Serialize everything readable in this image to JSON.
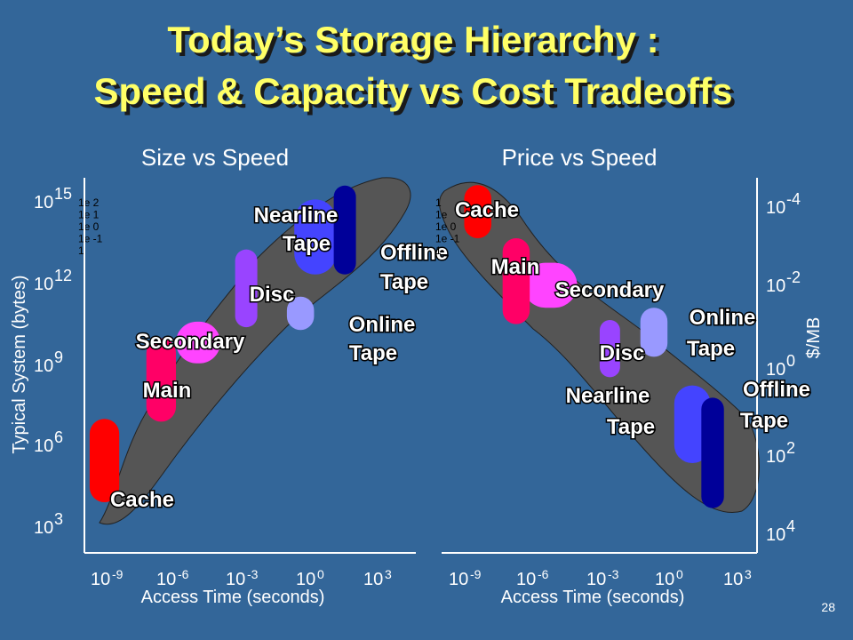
{
  "slide": {
    "title_line1": "Today’s Storage Hierarchy :",
    "title_line2": "Speed & Capacity  vs Cost Tradeoffs",
    "page_number": "28"
  },
  "colors": {
    "background": "#336699",
    "title": "#ffff66",
    "band": "#555555",
    "cache": "#ff0000",
    "main": "#ff0066",
    "secondary": "#ff44ff",
    "disc": "#9944ff",
    "online_tape": "#9999ff",
    "nearline_tape": "#4444ff",
    "offline_tape": "#000099"
  },
  "chart_data": [
    {
      "type": "scatter",
      "title": "Size vs Speed",
      "xlabel": "Access  Time (seconds)",
      "ylabel": "Typical System (bytes)",
      "x_scale": "log",
      "y_scale": "log",
      "x_ticks": [
        {
          "base": "10",
          "exp": "-9"
        },
        {
          "base": "10",
          "exp": "-6"
        },
        {
          "base": "10",
          "exp": "-3"
        },
        {
          "base": "10",
          "exp": " 0"
        },
        {
          "base": "10",
          "exp": " 3"
        }
      ],
      "y_ticks": [
        {
          "base": "10",
          "exp": "3"
        },
        {
          "base": "10",
          "exp": "6"
        },
        {
          "base": "10",
          "exp": "9"
        },
        {
          "base": "10",
          "exp": "12"
        },
        {
          "base": "10",
          "exp": "15"
        }
      ],
      "xlim_log10": [
        -9,
        3
      ],
      "ylim_log10": [
        3,
        15
      ],
      "overlay_tick_text": [
        "1e 2",
        "1e 1",
        "1e 0",
        "1e -1",
        "1"
      ],
      "categories": [
        {
          "key": "cache",
          "label": [
            "Cache"
          ],
          "x_log10": [
            -9.4,
            -8.2
          ],
          "y_log10": [
            3.8,
            6.8
          ]
        },
        {
          "key": "main",
          "label": [
            "Main"
          ],
          "x_log10": [
            -7.1,
            -5.9
          ],
          "y_log10": [
            6.7,
            9.7
          ]
        },
        {
          "key": "secondary",
          "label": [
            "Secondary"
          ],
          "x_log10": [
            -5.9,
            -4.1
          ],
          "y_log10": [
            8.8,
            10.3
          ]
        },
        {
          "key": "disc",
          "label": [
            "Disc"
          ],
          "x_log10": [
            -3.5,
            -2.6
          ],
          "y_log10": [
            10.1,
            12.9
          ]
        },
        {
          "key": "nearline_tape",
          "label": [
            "Nearline",
            "Tape"
          ],
          "x_log10": [
            -1.1,
            0.6
          ],
          "y_log10": [
            12.0,
            14.7
          ]
        },
        {
          "key": "offline_tape",
          "label": [
            "Offline",
            "Tape"
          ],
          "x_log10": [
            0.5,
            1.4
          ],
          "y_log10": [
            12.0,
            15.2
          ]
        },
        {
          "key": "online_tape",
          "label": [
            "Online",
            "Tape"
          ],
          "x_log10": [
            -1.4,
            -0.3
          ],
          "y_log10": [
            10.0,
            11.2
          ]
        }
      ]
    },
    {
      "type": "scatter",
      "title": "Price vs Speed",
      "xlabel": "Access  Time (seconds)",
      "ylabel": "$/MB",
      "x_scale": "log",
      "y_scale": "log",
      "x_ticks": [
        {
          "base": "10",
          "exp": "-9"
        },
        {
          "base": "10",
          "exp": "-6"
        },
        {
          "base": "10",
          "exp": "-3"
        },
        {
          "base": "10",
          "exp": " 0"
        },
        {
          "base": "10",
          "exp": " 3"
        }
      ],
      "y_ticks": [
        {
          "base": "10",
          "exp": "4"
        },
        {
          "base": "10",
          "exp": "2"
        },
        {
          "base": "10",
          "exp": "0"
        },
        {
          "base": "10",
          "exp": "-2"
        },
        {
          "base": "10",
          "exp": "-4"
        }
      ],
      "xlim_log10": [
        -9,
        3
      ],
      "ylim_log10": [
        -4,
        4
      ],
      "overlay_tick_text": [
        "1",
        "1e",
        "1e 0",
        "1e -1",
        "1"
      ],
      "categories": [
        {
          "key": "cache",
          "label": [
            "Cache"
          ],
          "x_log10": [
            -9.1,
            -7.9
          ],
          "y_log10": [
            3.0,
            4.3
          ]
        },
        {
          "key": "main",
          "label": [
            "Main"
          ],
          "x_log10": [
            -7.4,
            -6.2
          ],
          "y_log10": [
            0.9,
            3.0
          ]
        },
        {
          "key": "secondary",
          "label": [
            "Secondary"
          ],
          "x_log10": [
            -6.5,
            -4.1
          ],
          "y_log10": [
            1.3,
            2.4
          ]
        },
        {
          "key": "disc",
          "label": [
            "Disc"
          ],
          "x_log10": [
            -3.1,
            -2.2
          ],
          "y_log10": [
            -0.4,
            1.0
          ]
        },
        {
          "key": "online_tape",
          "label": [
            "Online",
            "Tape"
          ],
          "x_log10": [
            -1.3,
            -0.1
          ],
          "y_log10": [
            0.1,
            1.3
          ]
        },
        {
          "key": "nearline_tape",
          "label": [
            "Nearline",
            "Tape"
          ],
          "x_log10": [
            0.2,
            1.8
          ],
          "y_log10": [
            -2.5,
            -0.6
          ]
        },
        {
          "key": "offline_tape",
          "label": [
            "Offline",
            "Tape"
          ],
          "x_log10": [
            1.4,
            2.4
          ],
          "y_log10": [
            -3.6,
            -0.9
          ]
        }
      ]
    }
  ]
}
